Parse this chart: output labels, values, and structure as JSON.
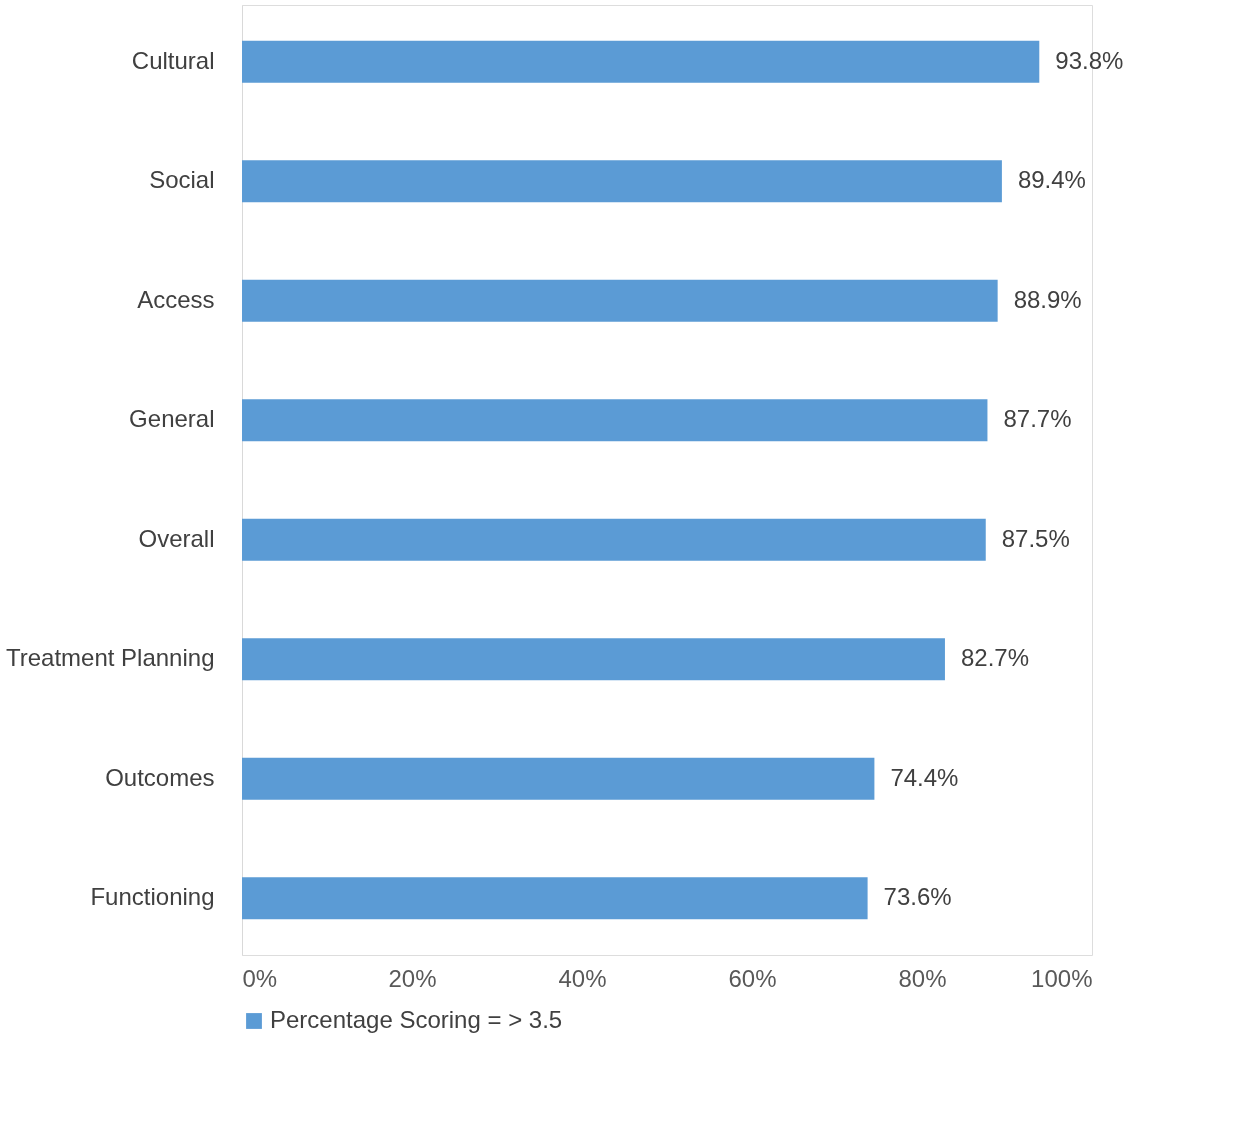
{
  "chart_data": {
    "type": "bar",
    "orientation": "horizontal",
    "categories": [
      "Cultural",
      "Social",
      "Access",
      "General",
      "Overall",
      "Treatment Planning",
      "Outcomes",
      "Functioning"
    ],
    "series": [
      {
        "name": "Percentage Scoring = > 3.5",
        "color": "#5b9bd5",
        "values": [
          93.8,
          89.4,
          88.9,
          87.7,
          87.5,
          82.7,
          74.4,
          73.6
        ],
        "value_labels": [
          "93.8%",
          "89.4%",
          "88.9%",
          "87.7%",
          "87.5%",
          "82.7%",
          "74.4%",
          "73.6%"
        ]
      }
    ],
    "xlim": [
      0,
      100
    ],
    "xticks": [
      {
        "value": 0,
        "label": "0%"
      },
      {
        "value": 20,
        "label": "20%"
      },
      {
        "value": 40,
        "label": "40%"
      },
      {
        "value": 60,
        "label": "60%"
      },
      {
        "value": 80,
        "label": "80%"
      },
      {
        "value": 100,
        "label": "100%"
      }
    ],
    "grid": false,
    "legend": "bottom"
  }
}
